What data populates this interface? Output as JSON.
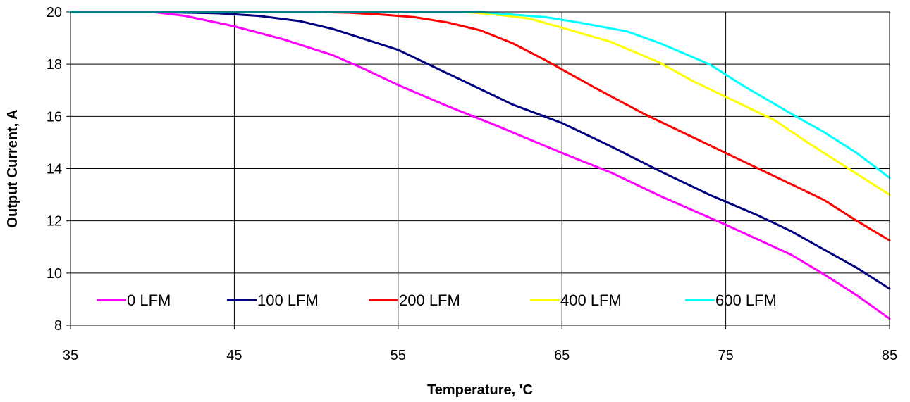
{
  "chart_data": {
    "type": "line",
    "title": "",
    "xlabel": "Temperature, 'C",
    "ylabel": "Output Current, A",
    "xlim": [
      35,
      85
    ],
    "ylim": [
      8,
      20
    ],
    "xticks": [
      35,
      45,
      55,
      65,
      75,
      85
    ],
    "yticks": [
      8,
      10,
      12,
      14,
      16,
      18,
      20
    ],
    "grid": true,
    "legend_position": "bottom-inside",
    "series": [
      {
        "name": "0 LFM",
        "color": "#ff00ff",
        "x": [
          35,
          40,
          42,
          45,
          48,
          51,
          53,
          55,
          58,
          61,
          65,
          68,
          71,
          75,
          79,
          81,
          83,
          85
        ],
        "y": [
          20,
          20,
          19.85,
          19.45,
          18.95,
          18.35,
          17.8,
          17.2,
          16.4,
          15.65,
          14.6,
          13.85,
          12.95,
          11.85,
          10.7,
          9.95,
          9.15,
          8.25
        ]
      },
      {
        "name": "100 LFM",
        "color": "#000080",
        "x": [
          35,
          40,
          44,
          46.5,
          49,
          51,
          53.5,
          55,
          58,
          62,
          65,
          68,
          71,
          74,
          77,
          79,
          81,
          83,
          85
        ],
        "y": [
          20,
          20,
          19.95,
          19.85,
          19.65,
          19.35,
          18.85,
          18.55,
          17.65,
          16.45,
          15.75,
          14.85,
          13.9,
          13.0,
          12.2,
          11.6,
          10.9,
          10.2,
          9.4
        ]
      },
      {
        "name": "200 LFM",
        "color": "#ff0000",
        "x": [
          35,
          50,
          52,
          54,
          56,
          58,
          60,
          62,
          64,
          65,
          67,
          70,
          73,
          75,
          78,
          81,
          83,
          85
        ],
        "y": [
          20,
          20,
          19.97,
          19.9,
          19.8,
          19.6,
          19.3,
          18.8,
          18.15,
          17.8,
          17.1,
          16.1,
          15.2,
          14.6,
          13.7,
          12.8,
          12.0,
          11.25
        ]
      },
      {
        "name": "400 LFM",
        "color": "#ffff00",
        "x": [
          35,
          59,
          61,
          63,
          65,
          68,
          71,
          73,
          75,
          78,
          80,
          82,
          84,
          85
        ],
        "y": [
          20,
          20,
          19.9,
          19.75,
          19.4,
          18.85,
          18.05,
          17.35,
          16.75,
          15.85,
          15.0,
          14.2,
          13.4,
          13.0
        ]
      },
      {
        "name": "600 LFM",
        "color": "#00ffff",
        "x": [
          35,
          60,
          62,
          64,
          66,
          69,
          71,
          74,
          76,
          79,
          81,
          83,
          85
        ],
        "y": [
          20,
          20,
          19.9,
          19.8,
          19.6,
          19.25,
          18.8,
          18.0,
          17.2,
          16.1,
          15.4,
          14.6,
          13.65
        ]
      }
    ]
  }
}
